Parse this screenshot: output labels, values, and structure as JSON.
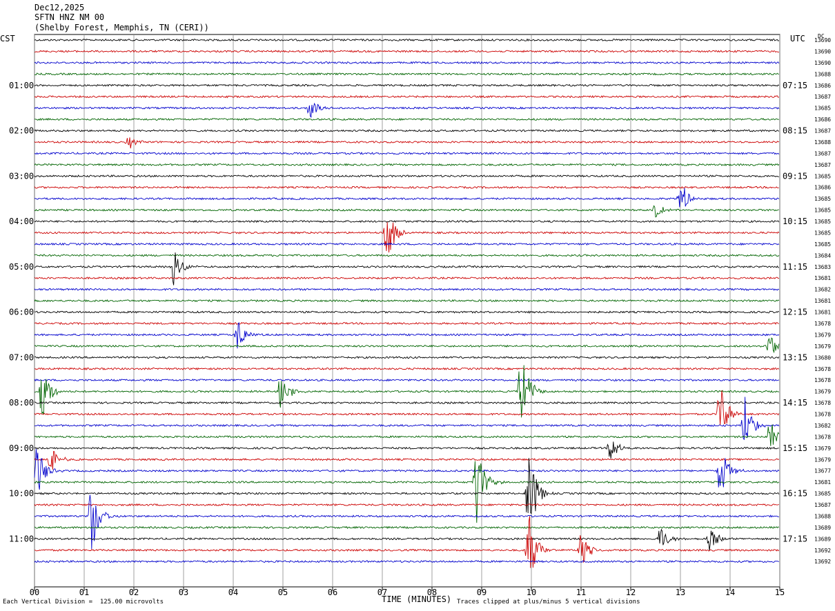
{
  "header": {
    "date": "Dec12,2025",
    "station": "SFTN HNZ NM 00",
    "location": "(Shelby Forest, Memphis, TN (CERI))"
  },
  "left_tz": "CST",
  "right_tz": "UTC",
  "dc_label": "DC",
  "footer": {
    "scale_note": "Each Vertical Division =  125.00 microvolts",
    "clip_note": "Traces clipped at plus/minus 5 vertical divisions",
    "x_label": "TIME (MINUTES)"
  },
  "colors": {
    "trace_cycle": [
      "#000000",
      "#cc0000",
      "#0000cc",
      "#006400"
    ],
    "grid": "#888888"
  },
  "chart_data": {
    "type": "line",
    "title": "SFTN HNZ NM 00",
    "xlabel": "TIME (MINUTES)",
    "xlim": [
      0,
      15
    ],
    "x_ticks": [
      "00",
      "01",
      "02",
      "03",
      "04",
      "05",
      "06",
      "07",
      "08",
      "09",
      "10",
      "11",
      "12",
      "13",
      "14",
      "15"
    ],
    "left_hour_labels": [
      "01:00",
      "02:00",
      "03:00",
      "04:00",
      "05:00",
      "06:00",
      "07:00",
      "08:00",
      "09:00",
      "10:00",
      "11:00"
    ],
    "right_hour_labels": [
      "07:15",
      "08:15",
      "09:15",
      "10:15",
      "11:15",
      "12:15",
      "13:15",
      "14:15",
      "15:15",
      "16:15",
      "17:15"
    ],
    "dc_offsets": [
      "13690",
      "13690",
      "13690",
      "13688",
      "13686",
      "13687",
      "13685",
      "13686",
      "13687",
      "13688",
      "13687",
      "13687",
      "13685",
      "13686",
      "13685",
      "13685",
      "13685",
      "13685",
      "13685",
      "13684",
      "13683",
      "13681",
      "13682",
      "13681",
      "13681",
      "13678",
      "13679",
      "13679",
      "13680",
      "13678",
      "13678",
      "13679",
      "13678",
      "13678",
      "13682",
      "13678",
      "13679",
      "13679",
      "13677",
      "13681",
      "13685",
      "13687",
      "13688",
      "13689",
      "13689",
      "13692",
      "13692"
    ],
    "events": [
      {
        "trace": 6,
        "minute": 5.55,
        "amp": 1.2
      },
      {
        "trace": 9,
        "minute": 1.9,
        "amp": 0.7
      },
      {
        "trace": 15,
        "minute": 12.5,
        "amp": 0.8
      },
      {
        "trace": 14,
        "minute": 13.0,
        "amp": 2.0
      },
      {
        "trace": 17,
        "minute": 7.1,
        "amp": 3.2
      },
      {
        "trace": 20,
        "minute": 2.8,
        "amp": 2.2
      },
      {
        "trace": 26,
        "minute": 4.1,
        "amp": 1.8
      },
      {
        "trace": 27,
        "minute": 14.8,
        "amp": 1.5
      },
      {
        "trace": 31,
        "minute": 0.15,
        "amp": 3.0
      },
      {
        "trace": 31,
        "minute": 4.95,
        "amp": 2.5
      },
      {
        "trace": 31,
        "minute": 9.8,
        "amp": 5.0
      },
      {
        "trace": 33,
        "minute": 13.8,
        "amp": 3.5
      },
      {
        "trace": 34,
        "minute": 14.3,
        "amp": 3.0
      },
      {
        "trace": 35,
        "minute": 14.8,
        "amp": 2.0
      },
      {
        "trace": 36,
        "minute": 11.6,
        "amp": 1.5
      },
      {
        "trace": 37,
        "minute": 0.3,
        "amp": 1.8
      },
      {
        "trace": 38,
        "minute": 0.05,
        "amp": 3.0
      },
      {
        "trace": 38,
        "minute": 13.8,
        "amp": 3.0
      },
      {
        "trace": 39,
        "minute": 8.9,
        "amp": 4.5
      },
      {
        "trace": 40,
        "minute": 9.95,
        "amp": 5.0
      },
      {
        "trace": 42,
        "minute": 1.15,
        "amp": 4.0
      },
      {
        "trace": 44,
        "minute": 12.6,
        "amp": 1.5
      },
      {
        "trace": 44,
        "minute": 13.6,
        "amp": 1.5
      },
      {
        "trace": 45,
        "minute": 9.95,
        "amp": 4.0
      },
      {
        "trace": 45,
        "minute": 11.0,
        "amp": 2.0
      }
    ]
  }
}
